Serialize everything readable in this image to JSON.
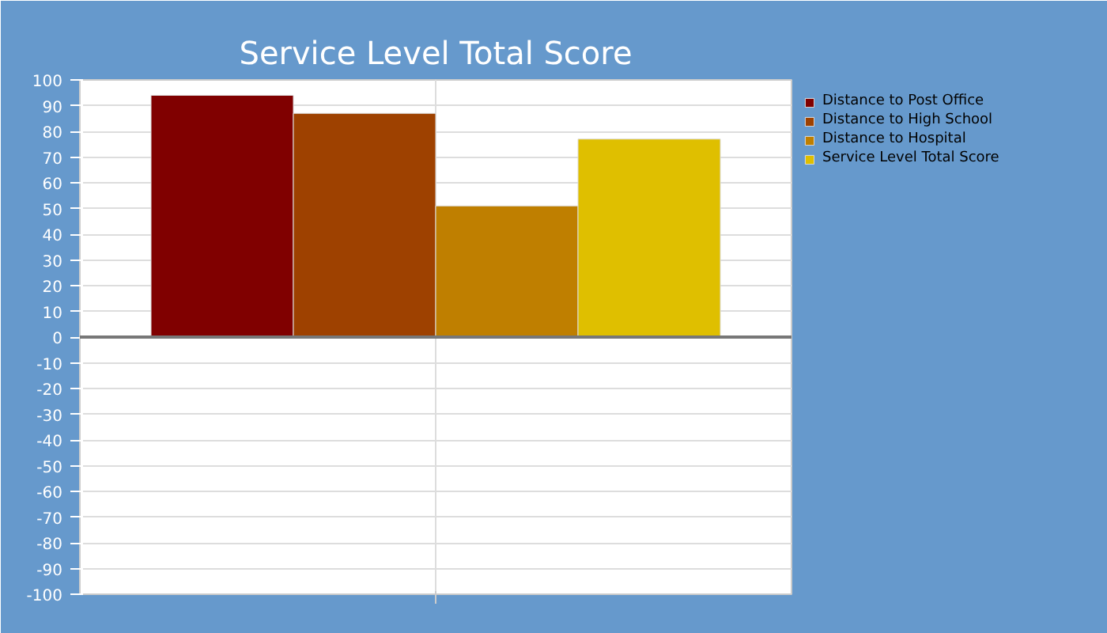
{
  "chart_data": {
    "type": "bar",
    "title": "Service Level Total Score",
    "categories": [
      null
    ],
    "series": [
      {
        "name": "Distance to Post Office",
        "color": "#800000",
        "values": [
          94
        ]
      },
      {
        "name": "Distance to High School",
        "color": "#9e4100",
        "values": [
          87
        ]
      },
      {
        "name": "Distance to Hospital",
        "color": "#bf7f00",
        "values": [
          51
        ]
      },
      {
        "name": "Service Level Total Score",
        "color": "#dfbf00",
        "values": [
          77
        ]
      }
    ],
    "ylim": [
      -100,
      100
    ],
    "yticks": [
      -100,
      -90,
      -80,
      -70,
      -60,
      -50,
      -40,
      -30,
      -20,
      -10,
      0,
      10,
      20,
      30,
      40,
      50,
      60,
      70,
      80,
      90,
      100
    ],
    "grid": true,
    "legend": "top right"
  }
}
